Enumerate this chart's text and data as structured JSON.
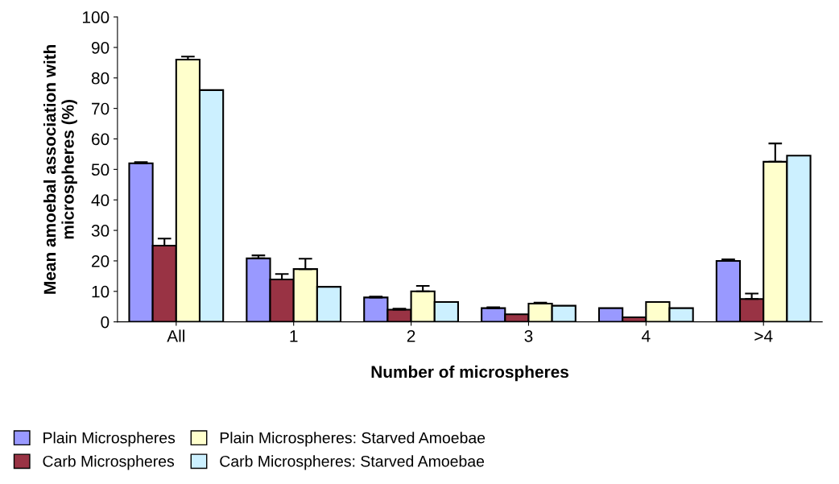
{
  "chart_data": {
    "type": "bar",
    "xlabel": "Number of microspheres",
    "ylabel": "Mean amoebal association with microspheres (%)",
    "categories": [
      "All",
      "1",
      "2",
      "3",
      "4",
      ">4"
    ],
    "ylim": [
      0,
      100
    ],
    "yticks": [
      0,
      10,
      20,
      30,
      40,
      50,
      60,
      70,
      80,
      90,
      100
    ],
    "grid": false,
    "legend": "bottom",
    "series": [
      {
        "name": "Plain Microspheres",
        "color": "#9999ff",
        "values": [
          52,
          20.8,
          8,
          4.5,
          4.5,
          20
        ],
        "errors": [
          [
            52,
            52.4
          ],
          [
            20.8,
            21.8
          ],
          [
            8,
            8.3
          ],
          [
            4.5,
            4.8
          ],
          null,
          [
            20,
            20.5
          ]
        ]
      },
      {
        "name": "Carb Microspheres",
        "color": "#993344",
        "values": [
          25,
          13.9,
          4,
          2.5,
          1.5,
          7.5
        ],
        "errors": [
          [
            25,
            27.3
          ],
          [
            13.9,
            15.7
          ],
          [
            4,
            4.3
          ],
          null,
          null,
          [
            7.5,
            9.3
          ]
        ]
      },
      {
        "name": "Plain Microspheres: Starved Amoebae",
        "color": "#ffffcc",
        "values": [
          86,
          17.3,
          10,
          6,
          6.5,
          52.5
        ],
        "errors": [
          [
            86,
            87
          ],
          [
            17.3,
            20.7
          ],
          [
            10,
            11.8
          ],
          [
            6,
            6.3
          ],
          null,
          [
            52.5,
            58.5
          ]
        ]
      },
      {
        "name": "Carb Microspheres: Starved Amoebae",
        "color": "#ccf0ff",
        "values": [
          76,
          11.5,
          6.5,
          5.3,
          4.5,
          54.5
        ],
        "errors": [
          null,
          null,
          null,
          null,
          null,
          null
        ]
      }
    ]
  }
}
